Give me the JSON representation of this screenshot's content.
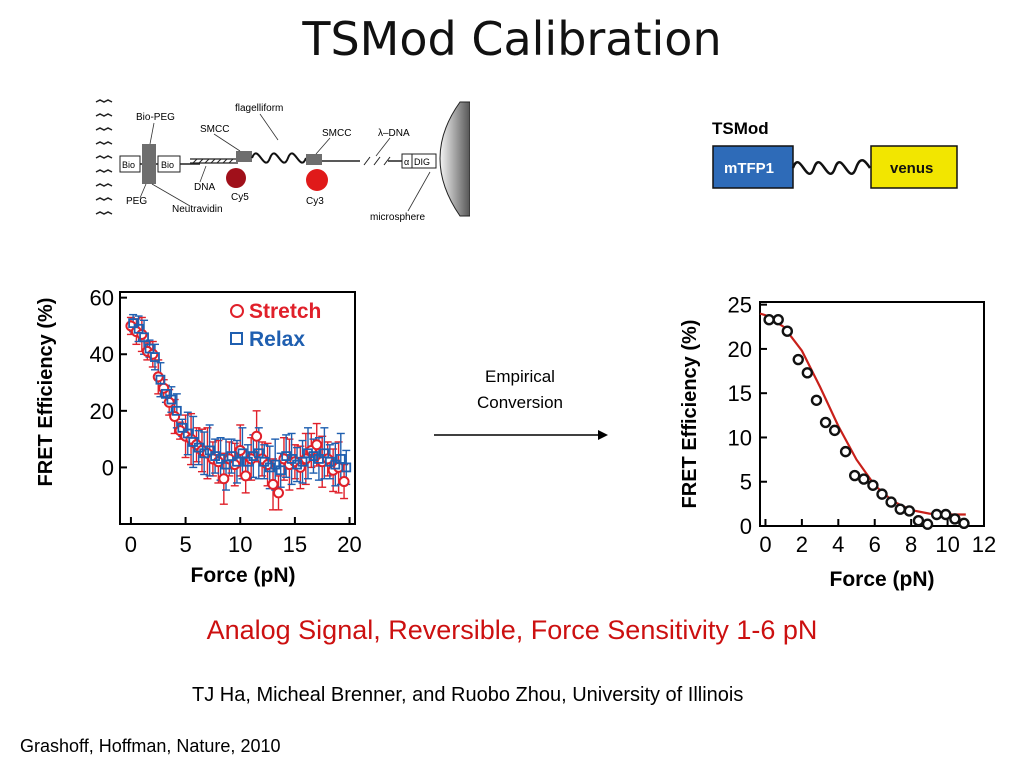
{
  "title": "TSMod Calibration",
  "schematic_left": {
    "labels": {
      "bio_peg": "Bio-PEG",
      "smcc_1": "SMCC",
      "flagelliform": "flagelliform",
      "smcc_2": "SMCC",
      "lambda_dna": "λ–DNA",
      "bio_1": "Bio",
      "bio_2": "Bio",
      "dna": "DNA",
      "cy5": "Cy5",
      "cy3": "Cy3",
      "alpha": "α",
      "dig": "DIG",
      "peg": "PEG",
      "neutravidin": "Neutravidin",
      "microsphere": "microsphere"
    },
    "colors": {
      "cy5": "#a0101a",
      "cy3": "#e01a1a",
      "neutravidin": "#6e6e6e"
    }
  },
  "schematic_right": {
    "title": "TSMod",
    "box_left": "mTFP1",
    "box_right": "venus",
    "colors": {
      "mtfp1": "#2e6bb8",
      "venus": "#f2e600"
    }
  },
  "arrow": {
    "label_line1": "Empirical",
    "label_line2": "Conversion"
  },
  "tagline": "Analog Signal, Reversible, Force Sensitivity 1-6 pN",
  "authors": "TJ Ha, Micheal Brenner, and Ruobo Zhou, University of Illinois",
  "citation": "Grashoff, Hoffman, Nature, 2010",
  "chart_data": [
    {
      "type": "scatter",
      "title": "",
      "xlabel": "Force (pN)",
      "ylabel": "FRET Efficiency (%)",
      "xlim": [
        -1,
        20.5
      ],
      "ylim": [
        -20,
        62
      ],
      "xticks": [
        "0",
        "5",
        "10",
        "15",
        "20"
      ],
      "yticks": [
        "0",
        "20",
        "40",
        "60"
      ],
      "legend": {
        "placement": "top-right"
      },
      "series": [
        {
          "name": "Stretch",
          "color": "#e0202a",
          "marker": "circle",
          "x": [
            0,
            0.5,
            1.0,
            1.5,
            2.0,
            2.5,
            3.0,
            3.5,
            4.0,
            4.5,
            5.0,
            5.5,
            6.0,
            6.5,
            7.0,
            7.5,
            8.0,
            8.5,
            9.0,
            9.5,
            10.0,
            10.5,
            11.0,
            11.5,
            12.0,
            12.5,
            13.0,
            13.5,
            14.0,
            14.5,
            15.0,
            15.5,
            16.0,
            16.5,
            17.0,
            17.5,
            18.0,
            18.5,
            19.0,
            19.5
          ],
          "y": [
            50,
            48,
            47,
            41,
            40,
            32,
            28,
            23,
            18,
            13,
            11,
            10,
            8,
            6,
            5,
            3,
            2,
            -4,
            3,
            1,
            6,
            -3,
            3,
            11,
            3,
            1,
            -6,
            -9,
            3,
            1,
            2,
            0,
            3,
            6,
            8,
            2,
            3,
            -1,
            0,
            -5
          ]
        },
        {
          "name": "Relax",
          "color": "#1f5fb0",
          "marker": "square",
          "x": [
            0,
            0.5,
            1.0,
            1.5,
            2.0,
            2.5,
            3.0,
            3.5,
            4.0,
            4.5,
            5.0,
            5.5,
            6.0,
            6.5,
            7.0,
            7.5,
            8.0,
            8.5,
            9.0,
            9.5,
            10.0,
            10.5,
            11.0,
            11.5,
            12.0,
            12.5,
            13.0,
            13.5,
            14.0,
            14.5,
            15.0,
            15.5,
            16.0,
            16.5,
            17.0,
            17.5,
            18.0,
            18.5,
            19.0,
            19.5
          ],
          "y": [
            51,
            49,
            46,
            42,
            39,
            31,
            26,
            24,
            20,
            14,
            12,
            9,
            7,
            5,
            6,
            4,
            3,
            1,
            4,
            2,
            5,
            2,
            4,
            5,
            2,
            0,
            1,
            -1,
            4,
            3,
            1,
            2,
            5,
            4,
            3,
            5,
            2,
            1,
            3,
            0
          ]
        }
      ]
    },
    {
      "type": "scatter",
      "title": "",
      "xlabel": "Force (pN)",
      "ylabel": "FRET Efficiency (%)",
      "xlim": [
        -0.3,
        12
      ],
      "ylim": [
        0,
        25.3
      ],
      "xticks": [
        "0",
        "2",
        "4",
        "6",
        "8",
        "10",
        "12"
      ],
      "yticks": [
        "0",
        "5",
        "10",
        "15",
        "20",
        "25"
      ],
      "series": [
        {
          "color": "#111111",
          "marker": "circle",
          "x": [
            0.2,
            0.7,
            1.2,
            1.8,
            2.3,
            2.8,
            3.3,
            3.8,
            4.4,
            4.9,
            5.4,
            5.9,
            6.4,
            6.9,
            7.4,
            7.9,
            8.4,
            8.9,
            9.4,
            9.9,
            10.4,
            10.9
          ],
          "y": [
            23.3,
            23.3,
            22.0,
            18.8,
            17.3,
            14.2,
            11.7,
            10.8,
            8.4,
            5.7,
            5.3,
            4.6,
            3.6,
            2.7,
            1.9,
            1.7,
            0.6,
            0.2,
            1.3,
            1.3,
            0.8,
            0.3
          ]
        },
        {
          "color": "#c8201a",
          "marker": "none",
          "line": true,
          "x": [
            -0.3,
            0,
            1,
            2,
            3,
            4,
            5,
            6,
            7,
            8,
            9,
            10,
            11
          ],
          "y": [
            24.0,
            23.8,
            22.5,
            19.8,
            15.7,
            11.3,
            7.5,
            4.6,
            2.8,
            1.8,
            1.4,
            1.3,
            1.3
          ]
        }
      ]
    }
  ]
}
